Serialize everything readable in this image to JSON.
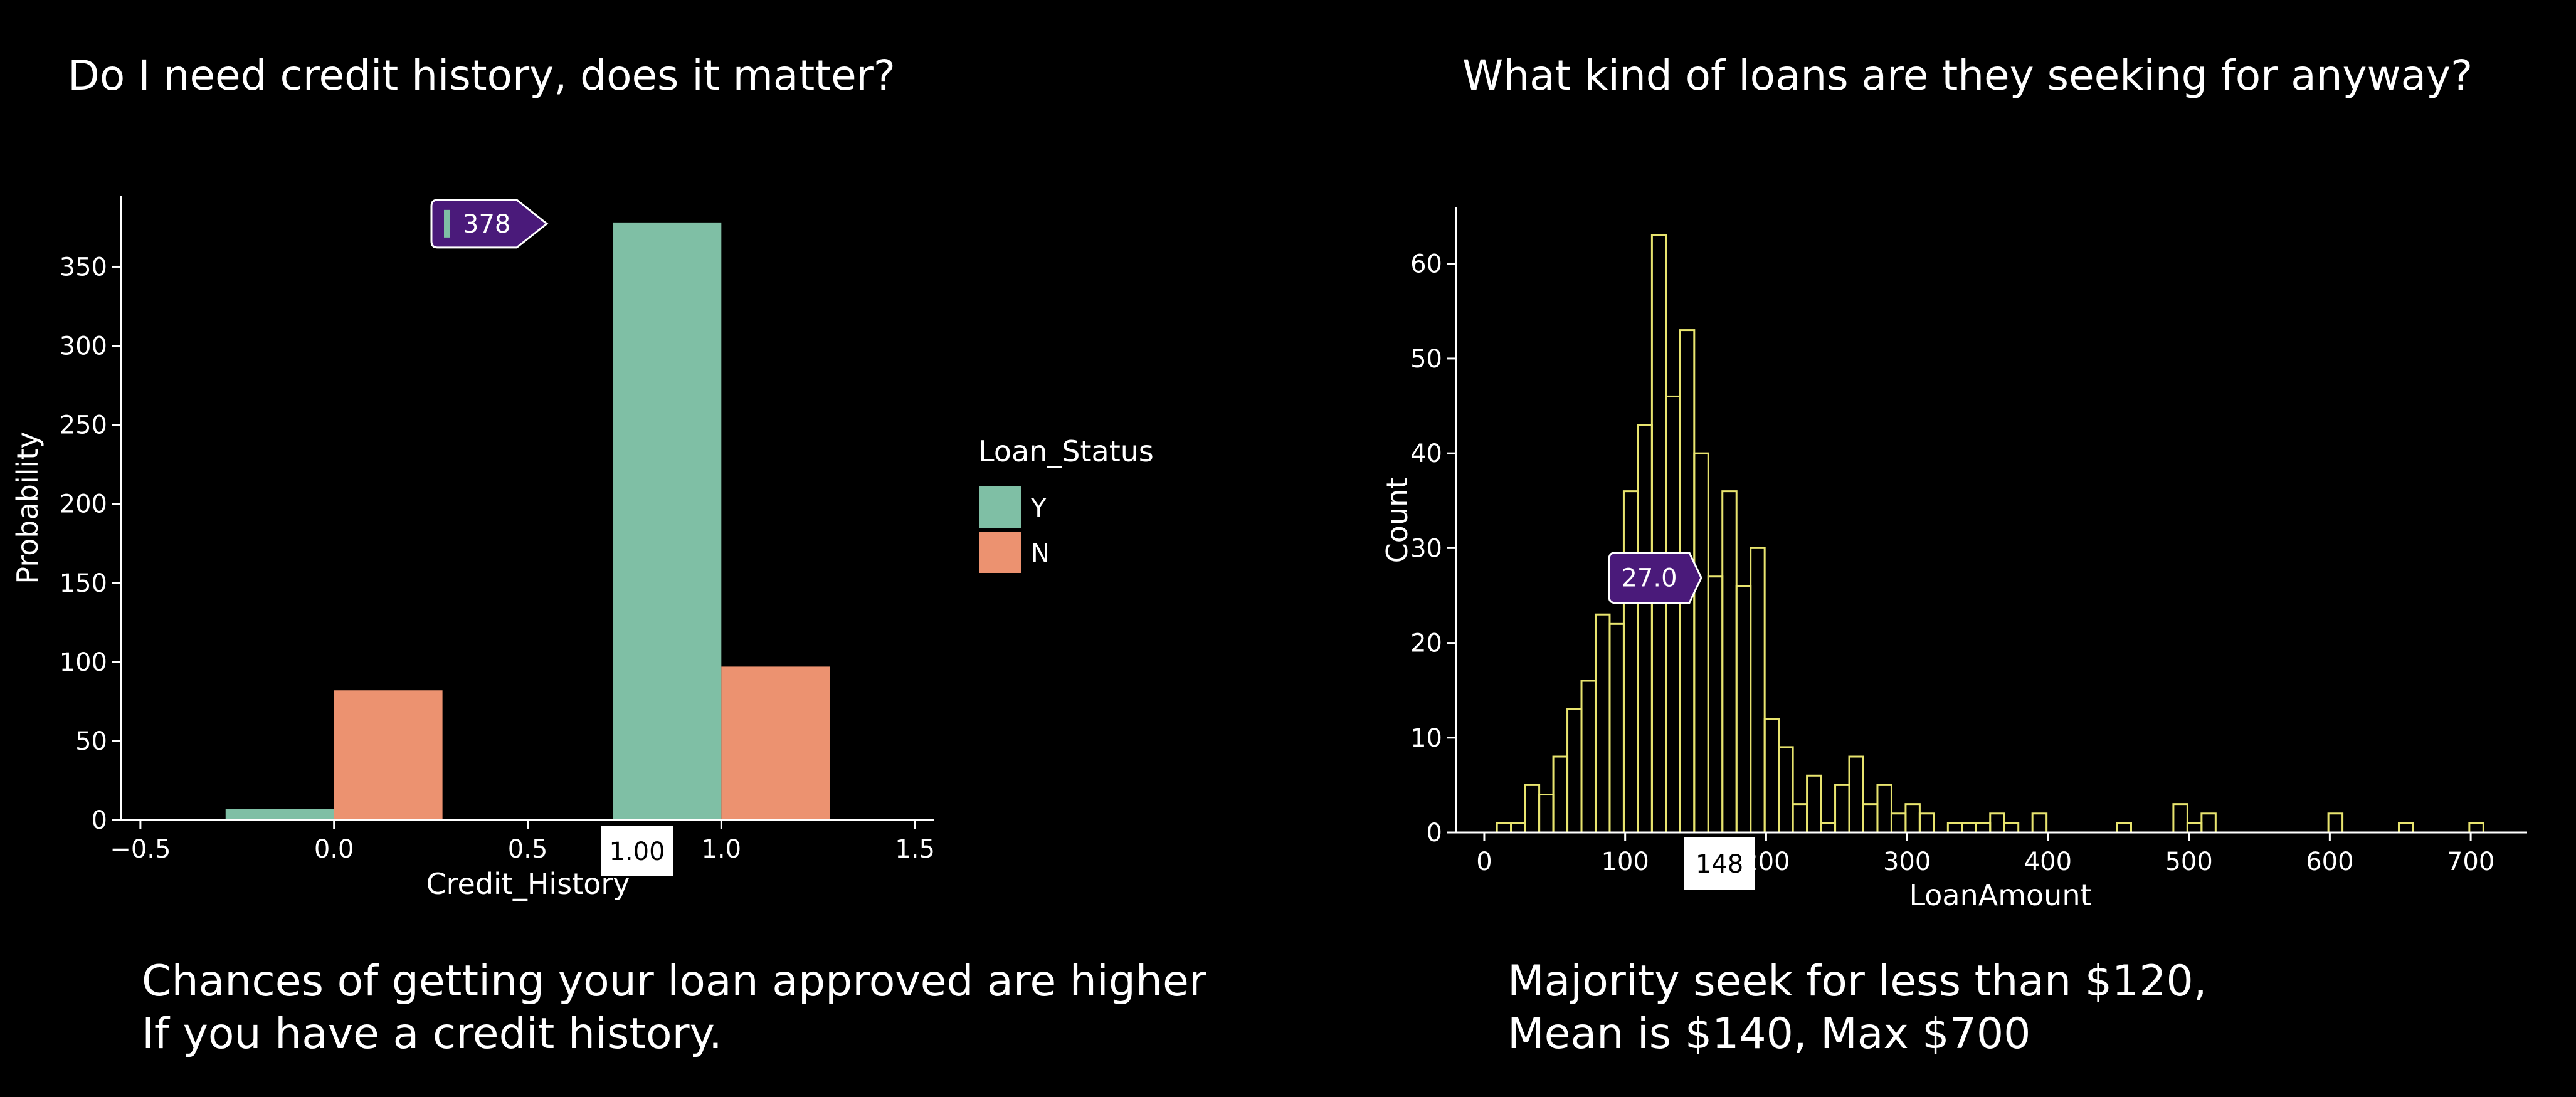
{
  "left_panel": {
    "title": "Do I need credit history, does it matter?",
    "caption_lines": [
      "Chances of getting your loan approved are higher",
      "If you have a credit history."
    ]
  },
  "right_panel": {
    "title": "What kind of loans are they seeking for anyway?",
    "caption_lines": [
      "Majority seek for less than $120,",
      "Mean is $140, Max $700"
    ]
  },
  "colors": {
    "Y": "#7fbfa5",
    "N": "#ec9270",
    "hist": "#e8e46e",
    "tooltip": "#4a1a7a"
  },
  "chart_data": [
    {
      "type": "bar",
      "xlabel": "Credit_History",
      "ylabel": "Probability",
      "xlim": [
        -0.55,
        1.55
      ],
      "ylim": [
        0,
        395
      ],
      "xticks": [
        -0.5,
        0.0,
        0.5,
        1.0,
        1.5
      ],
      "xtick_labels": [
        "−0.5",
        "0.0",
        "0.5",
        "1.0",
        "1.5"
      ],
      "yticks": [
        0,
        50,
        100,
        150,
        200,
        250,
        300,
        350
      ],
      "legend": {
        "title": "Loan_Status",
        "entries": [
          "Y",
          "N"
        ],
        "placement": "right"
      },
      "categories": [
        0.0,
        1.0
      ],
      "series": [
        {
          "name": "Y",
          "values": [
            7,
            378
          ]
        },
        {
          "name": "N",
          "values": [
            82,
            97
          ]
        }
      ],
      "tooltip": {
        "value": "378",
        "series": "Y",
        "category": 1.0
      },
      "axis_highlight": "1.00"
    },
    {
      "type": "bar",
      "subtype": "histogram",
      "xlabel": "LoanAmount",
      "ylabel": "Count",
      "xlim": [
        -20,
        740
      ],
      "ylim": [
        0,
        66
      ],
      "xticks": [
        0,
        100,
        200,
        300,
        400,
        500,
        600,
        700
      ],
      "yticks": [
        0,
        10,
        20,
        30,
        40,
        50,
        60
      ],
      "bin_start": 9,
      "bin_width": 10,
      "values": [
        1,
        1,
        5,
        4,
        8,
        13,
        16,
        23,
        22,
        36,
        43,
        63,
        46,
        53,
        40,
        27,
        36,
        26,
        30,
        12,
        9,
        3,
        6,
        1,
        5,
        8,
        3,
        5,
        2,
        3,
        2,
        0,
        1,
        1,
        1,
        2,
        1,
        0,
        2,
        0,
        0,
        0,
        0,
        0,
        1,
        0,
        0,
        0,
        3,
        1,
        2,
        0,
        0,
        0,
        0,
        0,
        0,
        0,
        0,
        2,
        0,
        0,
        0,
        0,
        1,
        0,
        0,
        0,
        0,
        1
      ],
      "tooltip": {
        "value": "27.0",
        "x": 154
      },
      "axis_highlight": "148"
    }
  ]
}
